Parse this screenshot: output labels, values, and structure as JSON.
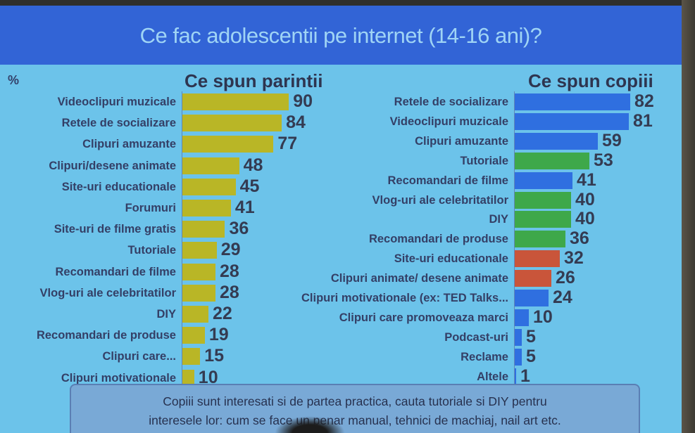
{
  "title": "Ce fac adolescentii pe internet (14-16 ani)?",
  "unit_label": "%",
  "colors": {
    "banner": "#3264d6",
    "background": "#6cc3ea",
    "parents_bar": "#b9b626",
    "kids_blue": "#2f6fe0",
    "kids_green": "#3ea84a",
    "kids_red": "#c9553a"
  },
  "parents": {
    "title": "Ce spun parintii",
    "items": [
      {
        "label": "Videoclipuri muzicale",
        "value": 90
      },
      {
        "label": "Retele de socializare",
        "value": 84
      },
      {
        "label": "Clipuri amuzante",
        "value": 77
      },
      {
        "label": "Clipuri/desene animate",
        "value": 48
      },
      {
        "label": "Site-uri educationale",
        "value": 45
      },
      {
        "label": "Forumuri",
        "value": 41
      },
      {
        "label": "Site-uri de filme gratis",
        "value": 36
      },
      {
        "label": "Tutoriale",
        "value": 29
      },
      {
        "label": "Recomandari de filme",
        "value": 28
      },
      {
        "label": "Vlog-uri ale celebritatilor",
        "value": 28
      },
      {
        "label": "DIY",
        "value": 22
      },
      {
        "label": "Recomandari de produse",
        "value": 19
      },
      {
        "label": "Clipuri care...",
        "value": 15
      },
      {
        "label": "Clipuri motivationale",
        "value": 10
      }
    ]
  },
  "kids": {
    "title": "Ce spun copiii",
    "items": [
      {
        "label": "Retele de socializare",
        "value": 82,
        "color": "blue"
      },
      {
        "label": "Videoclipuri muzicale",
        "value": 81,
        "color": "blue"
      },
      {
        "label": "Clipuri amuzante",
        "value": 59,
        "color": "blue"
      },
      {
        "label": "Tutoriale",
        "value": 53,
        "color": "green"
      },
      {
        "label": "Recomandari de filme",
        "value": 41,
        "color": "blue"
      },
      {
        "label": "Vlog-uri ale celebritatilor",
        "value": 40,
        "color": "green"
      },
      {
        "label": "DIY",
        "value": 40,
        "color": "green"
      },
      {
        "label": "Recomandari de produse",
        "value": 36,
        "color": "green"
      },
      {
        "label": "Site-uri educationale",
        "value": 32,
        "color": "red"
      },
      {
        "label": "Clipuri animate/ desene animate",
        "value": 26,
        "color": "red"
      },
      {
        "label": "Clipuri motivationale (ex: TED Talks...",
        "value": 24,
        "color": "blue"
      },
      {
        "label": "Clipuri care promoveaza marci",
        "value": 10,
        "color": "blue"
      },
      {
        "label": "Podcast-uri",
        "value": 5,
        "color": "blue"
      },
      {
        "label": "Reclame",
        "value": 5,
        "color": "blue"
      },
      {
        "label": "Altele",
        "value": 1,
        "color": "blue"
      }
    ]
  },
  "note": {
    "line1": "Copiii sunt interesati si de partea practica, cauta tutoriale si DIY pentru",
    "line2": "interesele lor: cum se face un penar manual, tehnici de machiaj, nail art etc."
  },
  "chart_data": [
    {
      "type": "bar",
      "orientation": "horizontal",
      "title": "Ce spun parintii",
      "ylabel": "%",
      "categories": [
        "Videoclipuri muzicale",
        "Retele de socializare",
        "Clipuri amuzante",
        "Clipuri/desene animate",
        "Site-uri educationale",
        "Forumuri",
        "Site-uri de filme gratis",
        "Tutoriale",
        "Recomandari de filme",
        "Vlog-uri ale celebritatilor",
        "DIY",
        "Recomandari de produse",
        "Clipuri care...",
        "Clipuri motivationale"
      ],
      "values": [
        90,
        84,
        77,
        48,
        45,
        41,
        36,
        29,
        28,
        28,
        22,
        19,
        15,
        10
      ],
      "grid": false,
      "data_labels": true
    },
    {
      "type": "bar",
      "orientation": "horizontal",
      "title": "Ce spun copiii",
      "ylabel": "%",
      "categories": [
        "Retele de socializare",
        "Videoclipuri muzicale",
        "Clipuri amuzante",
        "Tutoriale",
        "Recomandari de filme",
        "Vlog-uri ale celebritatilor",
        "DIY",
        "Recomandari de produse",
        "Site-uri educationale",
        "Clipuri animate/ desene animate",
        "Clipuri motivationale (ex: TED Talks...",
        "Clipuri care promoveaza marci",
        "Podcast-uri",
        "Reclame",
        "Altele"
      ],
      "values": [
        82,
        81,
        59,
        53,
        41,
        40,
        40,
        36,
        32,
        26,
        24,
        10,
        5,
        5,
        1
      ],
      "bar_colors": [
        "blue",
        "blue",
        "blue",
        "green",
        "blue",
        "green",
        "green",
        "green",
        "red",
        "red",
        "blue",
        "blue",
        "blue",
        "blue",
        "blue"
      ],
      "grid": false,
      "data_labels": true
    }
  ]
}
